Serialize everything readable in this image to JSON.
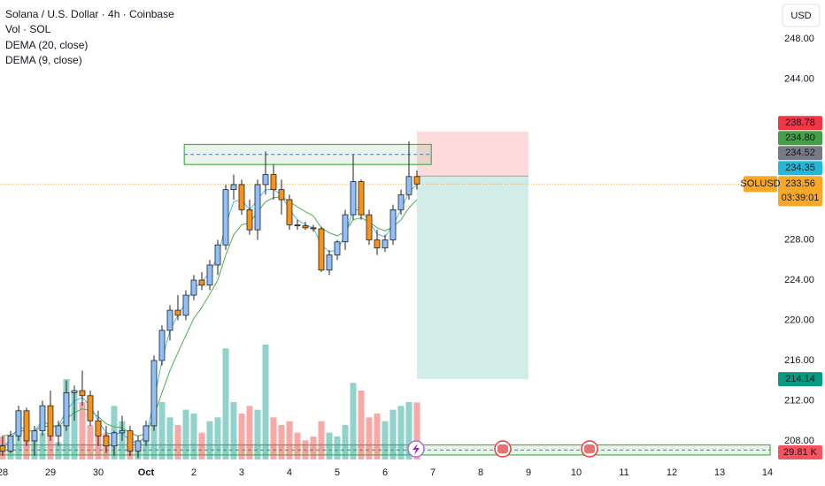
{
  "chart_data": {
    "type": "candlestick",
    "title": "Solana / U.S. Dollar · 4h · Coinbase",
    "currency": "USD",
    "up_color": "#90bff9",
    "down_color": "#f7931a",
    "open": [
      207.5,
      207.0,
      208.5,
      211.0,
      208.0,
      209.0,
      211.5,
      208.5,
      209.5,
      212.8,
      213.0,
      212.5,
      210.0,
      208.5,
      207.5,
      208.8,
      209.0,
      207.0,
      208.0,
      209.5,
      216.0,
      219.0,
      221.0,
      220.5,
      222.5,
      224.0,
      223.5,
      225.5,
      227.5,
      233.0,
      233.5,
      231.0,
      229.0,
      233.5,
      234.5,
      233.0,
      232.0,
      229.5,
      229.4,
      229.2,
      229.1,
      225.0,
      226.5,
      227.8,
      230.5,
      233.8,
      230.5,
      228.0,
      227.2,
      228.0,
      231.0,
      232.5,
      234.3
    ],
    "high": [
      208.5,
      209.0,
      211.5,
      211.3,
      209.5,
      212.0,
      213.0,
      210.0,
      214.0,
      213.5,
      215.0,
      213.0,
      211.0,
      209.5,
      209.0,
      210.5,
      209.5,
      208.5,
      210.0,
      216.5,
      219.5,
      221.5,
      222.5,
      223.0,
      224.5,
      224.8,
      226.0,
      228.0,
      233.5,
      234.5,
      234.0,
      232.0,
      234.0,
      236.8,
      235.5,
      234.0,
      232.5,
      230.0,
      229.8,
      229.5,
      229.3,
      227.0,
      228.0,
      231.0,
      236.5,
      234.0,
      231.0,
      229.0,
      228.5,
      231.5,
      233.0,
      237.8,
      234.9
    ],
    "low": [
      206.5,
      206.8,
      208.0,
      207.5,
      206.5,
      208.5,
      208.0,
      207.5,
      209.0,
      210.0,
      211.5,
      209.5,
      207.5,
      206.8,
      206.5,
      208.0,
      206.5,
      206.3,
      207.5,
      209.0,
      215.5,
      218.0,
      220.0,
      220.0,
      222.0,
      223.0,
      223.0,
      224.5,
      227.0,
      232.0,
      230.5,
      228.5,
      228.0,
      232.5,
      232.0,
      230.5,
      229.0,
      229.0,
      229.0,
      228.8,
      224.8,
      224.5,
      226.0,
      227.0,
      230.0,
      230.0,
      227.5,
      226.5,
      226.8,
      227.5,
      230.5,
      232.0,
      233.0
    ],
    "close": [
      207.0,
      208.5,
      211.0,
      208.0,
      209.0,
      211.5,
      208.5,
      209.5,
      212.8,
      213.0,
      212.5,
      210.0,
      208.5,
      207.5,
      208.8,
      209.0,
      207.0,
      208.0,
      209.5,
      216.0,
      219.0,
      221.0,
      220.5,
      222.5,
      224.0,
      223.5,
      225.5,
      227.5,
      233.0,
      233.5,
      231.0,
      229.0,
      233.5,
      234.5,
      233.0,
      232.0,
      229.5,
      229.4,
      229.2,
      229.1,
      225.0,
      226.5,
      227.8,
      230.5,
      233.8,
      230.5,
      228.0,
      227.2,
      228.0,
      231.0,
      232.5,
      234.3,
      233.56
    ],
    "volume": {
      "name": "Vol · SOL",
      "up_color": "rgba(38,166,154,0.5)",
      "down_color": "rgba(239,83,80,0.5)",
      "ylim": [
        0,
        60
      ],
      "values": [
        12,
        8,
        25,
        22,
        10,
        14,
        16,
        9,
        42,
        35,
        30,
        18,
        20,
        14,
        28,
        20,
        12,
        9,
        16,
        42,
        30,
        22,
        18,
        26,
        24,
        14,
        20,
        22,
        58,
        30,
        24,
        28,
        26,
        60,
        22,
        18,
        20,
        14,
        10,
        12,
        20,
        14,
        12,
        18,
        40,
        36,
        22,
        24,
        20,
        26,
        28,
        30,
        29.81
      ],
      "label": {
        "value": 29.81,
        "label": "29.81 K",
        "color": "#f7525f"
      }
    },
    "series": [
      {
        "name": "DEMA (20, close)",
        "color": "#4caf50",
        "values": [
          208.5,
          208.6,
          209.0,
          209.0,
          209.0,
          209.5,
          209.4,
          209.4,
          210.2,
          210.8,
          211.2,
          211.0,
          210.4,
          209.7,
          209.4,
          209.3,
          208.8,
          208.5,
          208.7,
          210.5,
          212.8,
          215.0,
          216.8,
          218.5,
          220.2,
          221.3,
          222.6,
          224.0,
          226.5,
          228.5,
          229.5,
          229.7,
          230.8,
          231.8,
          232.2,
          232.3,
          231.8,
          231.3,
          230.8,
          230.4,
          229.2,
          228.7,
          228.4,
          228.8,
          230.0,
          230.2,
          229.8,
          229.2,
          228.9,
          229.3,
          230.0,
          231.2,
          232.0
        ]
      },
      {
        "name": "DEMA (9, close)",
        "color": "#4db6e6",
        "values": [
          207.5,
          208.0,
          209.5,
          209.0,
          209.0,
          210.0,
          209.5,
          209.5,
          211.0,
          212.0,
          212.3,
          211.5,
          210.0,
          208.8,
          208.7,
          208.8,
          208.0,
          207.8,
          208.5,
          212.0,
          216.0,
          219.0,
          220.5,
          221.8,
          223.2,
          223.8,
          224.8,
          226.3,
          229.5,
          231.8,
          232.0,
          231.0,
          232.0,
          233.0,
          233.0,
          232.5,
          231.0,
          230.0,
          229.5,
          229.2,
          227.5,
          226.8,
          227.0,
          228.5,
          231.0,
          231.0,
          229.8,
          228.6,
          228.3,
          229.5,
          231.0,
          232.8,
          233.5
        ]
      }
    ],
    "ylim": [
      206.15,
      251.87
    ],
    "yticks": [
      {
        "value": 248,
        "label": "248.00"
      },
      {
        "value": 244,
        "label": "244.00"
      },
      {
        "value": 228,
        "label": "228.00"
      },
      {
        "value": 224,
        "label": "224.00"
      },
      {
        "value": 220,
        "label": "220.00"
      },
      {
        "value": 216,
        "label": "216.00"
      },
      {
        "value": 212,
        "label": "212.00"
      },
      {
        "value": 208,
        "label": "208.00"
      }
    ],
    "xlim": [
      -0.33,
      96.33
    ],
    "xticks": [
      {
        "value": 0,
        "label": "28"
      },
      {
        "value": 6,
        "label": "29"
      },
      {
        "value": 12,
        "label": "30"
      },
      {
        "value": 18,
        "label": "Oct"
      },
      {
        "value": 24,
        "label": "2"
      },
      {
        "value": 30,
        "label": "3"
      },
      {
        "value": 36,
        "label": "4"
      },
      {
        "value": 42,
        "label": "5"
      },
      {
        "value": 48,
        "label": "6"
      },
      {
        "value": 54,
        "label": "7"
      },
      {
        "value": 60,
        "label": "8"
      },
      {
        "value": 66,
        "label": "9"
      },
      {
        "value": 72,
        "label": "10"
      },
      {
        "value": 78,
        "label": "11"
      },
      {
        "value": 84,
        "label": "12"
      },
      {
        "value": 90,
        "label": "13"
      },
      {
        "value": 96,
        "label": "14"
      }
    ],
    "grid": false,
    "zones": [
      {
        "ylim": [
          235.5,
          237.5
        ],
        "xlim": [
          22.8,
          53.8
        ],
        "color": "#4caf50"
      },
      {
        "ylim": [
          206.6,
          207.6
        ],
        "xlim": [
          -0.33,
          96.33
        ],
        "color": "#4caf50"
      }
    ],
    "position": {
      "stop": 238.78,
      "entry": 234.35,
      "target": 214.14,
      "xlim": [
        52,
        66
      ]
    },
    "price_labels": [
      {
        "value": 238.78,
        "label": "238.78",
        "color": "#f23645"
      },
      {
        "value": 234.8,
        "label": "234.80",
        "color": "#43a047"
      },
      {
        "value": 234.52,
        "label": "234.52",
        "color": "#787b86"
      },
      {
        "value": 234.35,
        "label": "234.35",
        "color": "#22b8d6"
      },
      {
        "value": 214.14,
        "label": "214.14",
        "color": "#089981"
      }
    ],
    "current": {
      "value": 233.56,
      "label": "233.56",
      "countdown": "03:39:01",
      "symbol": "SOLUSD",
      "color": "#f9a825"
    }
  }
}
